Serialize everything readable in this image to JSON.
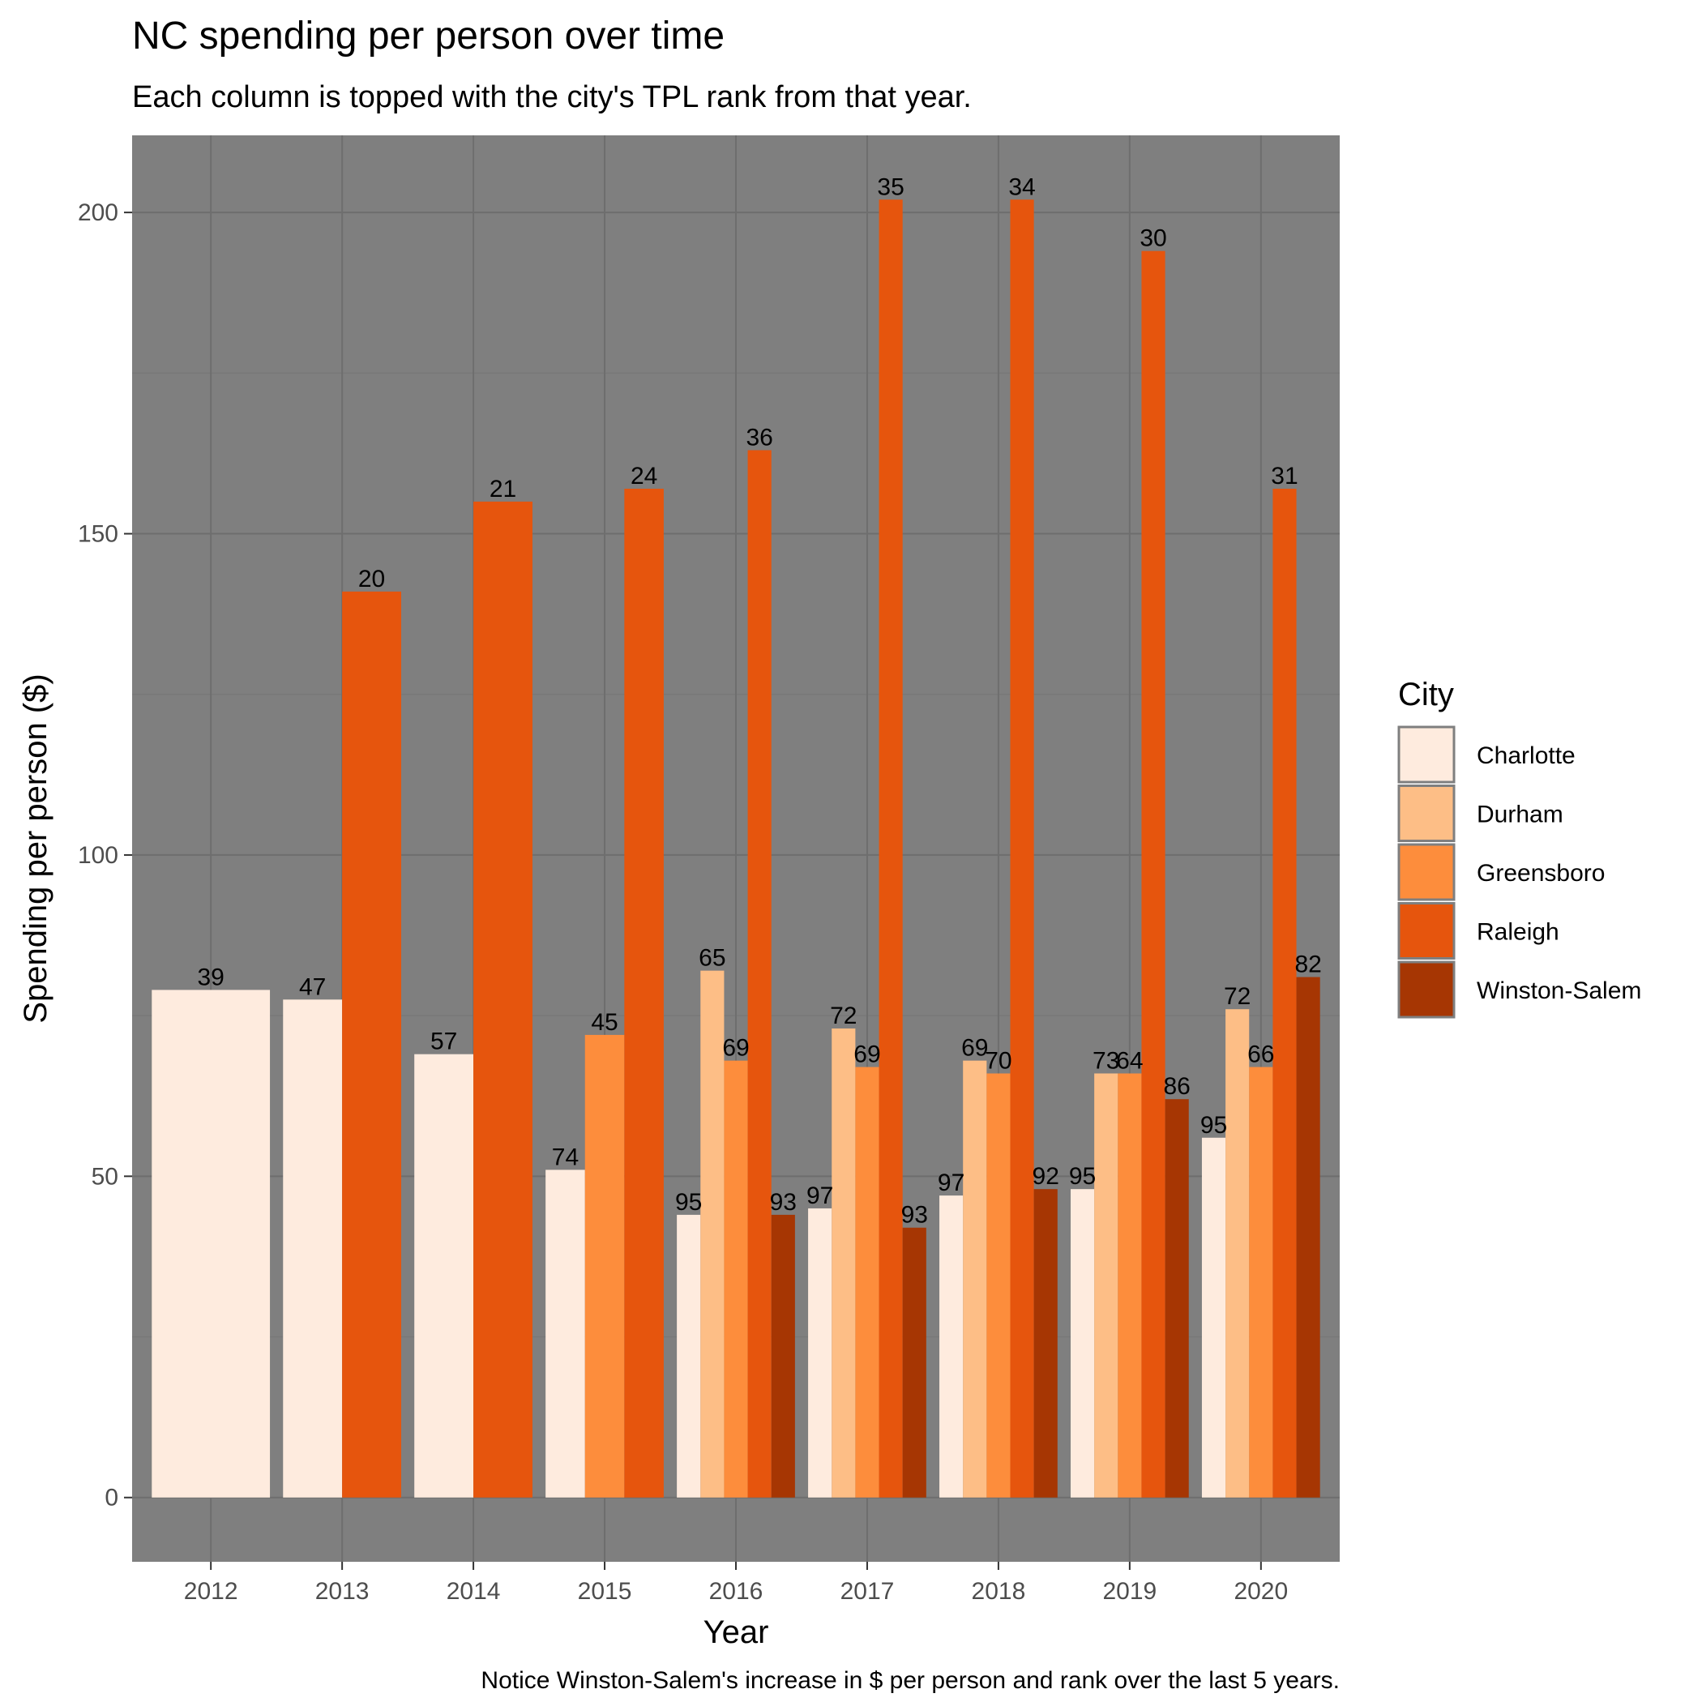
{
  "chart_data": {
    "type": "bar",
    "title": "NC spending per person over time",
    "subtitle": "Each column is topped with the city's TPL rank from that year.",
    "xlabel": "Year",
    "ylabel": "Spending per person ($)",
    "caption": "Notice Winston-Salem's increase in $ per person and rank over the last 5 years.",
    "ylim": [
      -10,
      212
    ],
    "yticks": [
      0,
      50,
      100,
      150,
      200
    ],
    "grid": true,
    "legend_position": "right",
    "legend_title": "City",
    "categories": [
      "2012",
      "2013",
      "2014",
      "2015",
      "2016",
      "2017",
      "2018",
      "2019",
      "2020"
    ],
    "series": [
      {
        "name": "Charlotte",
        "color": "#FEEBDE",
        "values": [
          79,
          77.5,
          69,
          51,
          44,
          45,
          47,
          48,
          56
        ],
        "ranks": [
          "39",
          "47",
          "57",
          "74",
          "95",
          "97",
          "97",
          "95",
          "95"
        ]
      },
      {
        "name": "Durham",
        "color": "#FDBE86",
        "values": [
          null,
          null,
          null,
          null,
          82,
          73,
          68,
          66,
          76
        ],
        "ranks": [
          null,
          null,
          null,
          null,
          "65",
          "72",
          "69",
          "73",
          "72"
        ]
      },
      {
        "name": "Greensboro",
        "color": "#FD8D3C",
        "values": [
          null,
          null,
          null,
          72,
          68,
          67,
          66,
          66,
          67
        ],
        "ranks": [
          null,
          null,
          null,
          "45",
          "69",
          "69",
          "70",
          "64",
          "66"
        ]
      },
      {
        "name": "Raleigh",
        "color": "#E6550D",
        "values": [
          null,
          141,
          155,
          157,
          163,
          202,
          202,
          194,
          157
        ],
        "ranks": [
          null,
          "20",
          "21",
          "24",
          "36",
          "35",
          "34",
          "30",
          "31"
        ]
      },
      {
        "name": "Winston-Salem",
        "color": "#A63603",
        "values": [
          null,
          null,
          null,
          null,
          44,
          42,
          48,
          62,
          81
        ],
        "ranks": [
          null,
          null,
          null,
          null,
          "93",
          "93",
          "92",
          "86",
          "82"
        ]
      }
    ]
  },
  "colors": {
    "panel_background": "#7F7F7F",
    "grid_major": "#6E6E6E",
    "grid_minor": "#777777"
  }
}
